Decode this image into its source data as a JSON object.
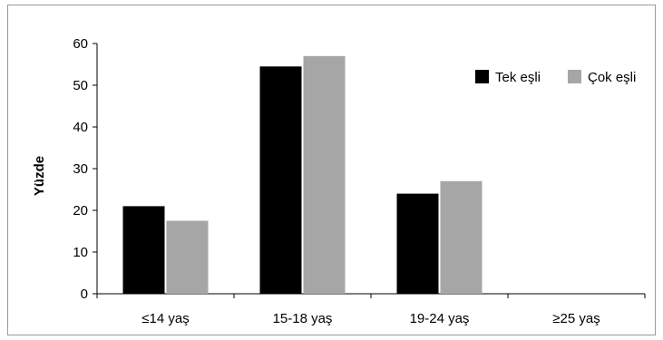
{
  "chart_data": {
    "type": "bar",
    "title": "",
    "xlabel": "",
    "ylabel": "Yüzde",
    "ylim": [
      0,
      60
    ],
    "yticks": [
      0,
      10,
      20,
      30,
      40,
      50,
      60
    ],
    "grid": false,
    "legend_position": "top-right",
    "categories": [
      "≤14 yaş",
      "15-18 yaş",
      "19-24 yaş",
      "≥25 yaş"
    ],
    "series": [
      {
        "name": "Tek eşli",
        "color": "#000000",
        "values": [
          21,
          54.5,
          24,
          0
        ]
      },
      {
        "name": "Çok eşli",
        "color": "#a6a6a6",
        "values": [
          17.5,
          57,
          27,
          0
        ]
      }
    ]
  }
}
